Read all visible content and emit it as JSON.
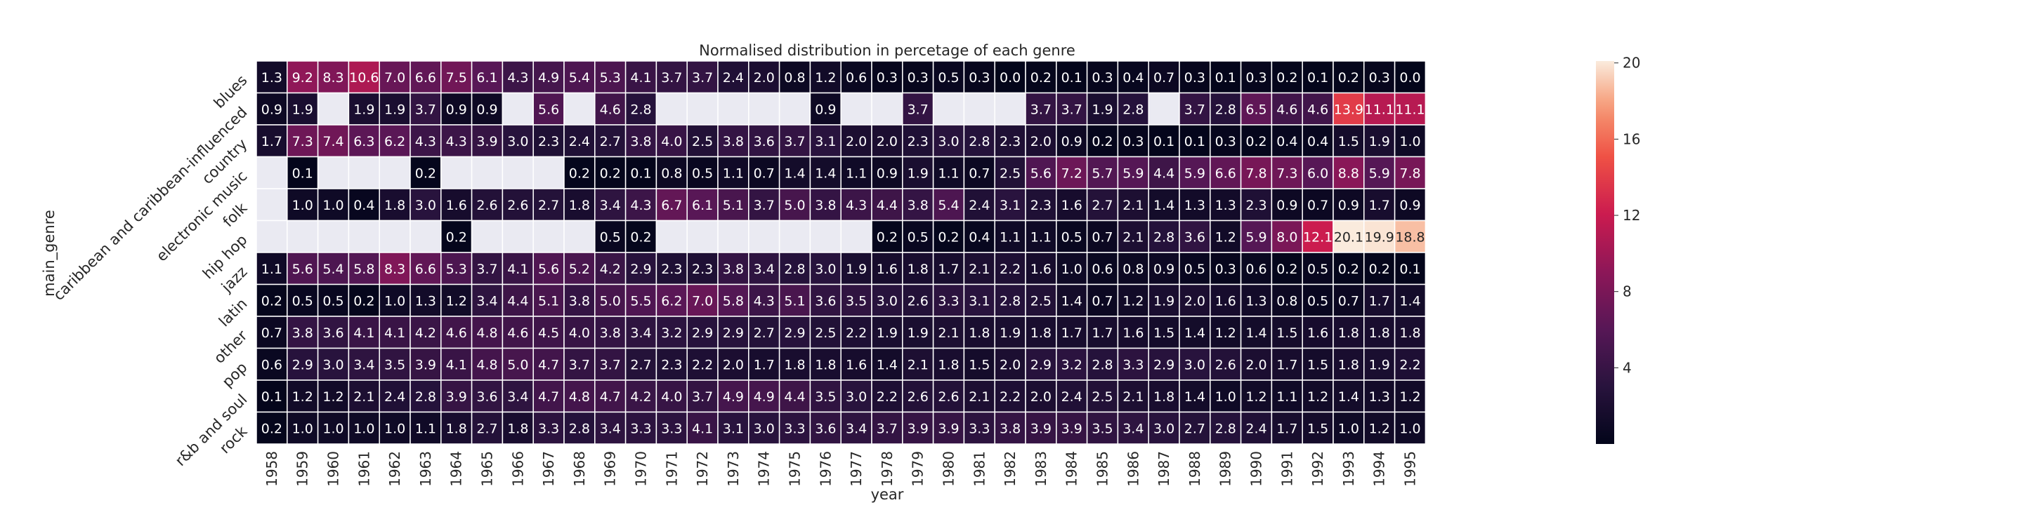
{
  "chart_data": {
    "type": "heatmap",
    "title": "Normalised distribution in percetage of each genre",
    "xlabel": "year",
    "ylabel": "main_genre",
    "x": [
      "1958",
      "1959",
      "1960",
      "1961",
      "1962",
      "1963",
      "1964",
      "1965",
      "1966",
      "1967",
      "1968",
      "1969",
      "1970",
      "1971",
      "1972",
      "1973",
      "1974",
      "1975",
      "1976",
      "1977",
      "1978",
      "1979",
      "1980",
      "1981",
      "1982",
      "1983",
      "1984",
      "1985",
      "1986",
      "1987",
      "1988",
      "1989",
      "1990",
      "1991",
      "1992",
      "1993",
      "1994",
      "1995"
    ],
    "y": [
      "blues",
      "caribbean and caribbean-influenced",
      "country",
      "electronic music",
      "folk",
      "hip hop",
      "jazz",
      "latin",
      "other",
      "pop",
      "r&b and soul",
      "rock"
    ],
    "values": [
      [
        1.3,
        9.2,
        8.3,
        10.6,
        7.0,
        6.6,
        7.5,
        6.1,
        4.3,
        4.9,
        5.4,
        5.3,
        4.1,
        3.7,
        3.7,
        2.4,
        2.0,
        0.8,
        1.2,
        0.6,
        0.3,
        0.3,
        0.5,
        0.3,
        0.0,
        0.2,
        0.1,
        0.3,
        0.4,
        0.7,
        0.3,
        0.1,
        0.3,
        0.2,
        0.1,
        0.2,
        0.3,
        0.0
      ],
      [
        0.9,
        1.9,
        null,
        1.9,
        1.9,
        3.7,
        0.9,
        0.9,
        null,
        5.6,
        null,
        4.6,
        2.8,
        null,
        null,
        null,
        null,
        null,
        0.9,
        null,
        null,
        3.7,
        null,
        null,
        null,
        3.7,
        3.7,
        1.9,
        2.8,
        null,
        3.7,
        2.8,
        6.5,
        4.6,
        4.6,
        13.9,
        11.1,
        11.1
      ],
      [
        1.7,
        7.3,
        7.4,
        6.3,
        6.2,
        4.3,
        4.3,
        3.9,
        3.0,
        2.3,
        2.4,
        2.7,
        3.8,
        4.0,
        2.5,
        3.8,
        3.6,
        3.7,
        3.1,
        2.0,
        2.0,
        2.3,
        3.0,
        2.8,
        2.3,
        2.0,
        0.9,
        0.2,
        0.3,
        0.1,
        0.1,
        0.3,
        0.2,
        0.4,
        0.4,
        1.5,
        1.9,
        1.0
      ],
      [
        null,
        0.1,
        null,
        null,
        null,
        0.2,
        null,
        null,
        null,
        null,
        0.2,
        0.2,
        0.1,
        0.8,
        0.5,
        1.1,
        0.7,
        1.4,
        1.4,
        1.1,
        0.9,
        1.9,
        1.1,
        0.7,
        2.5,
        5.6,
        7.2,
        5.7,
        5.9,
        4.4,
        5.9,
        6.6,
        7.8,
        7.3,
        6.0,
        8.8,
        5.9,
        7.8
      ],
      [
        null,
        1.0,
        1.0,
        0.4,
        1.8,
        3.0,
        1.6,
        2.6,
        2.6,
        2.7,
        1.8,
        3.4,
        4.3,
        6.7,
        6.1,
        5.1,
        3.7,
        5.0,
        3.8,
        4.3,
        4.4,
        3.8,
        5.4,
        2.4,
        3.1,
        2.3,
        1.6,
        2.7,
        2.1,
        1.4,
        1.3,
        1.3,
        2.3,
        0.9,
        0.7,
        0.9,
        1.7,
        0.9
      ],
      [
        null,
        null,
        null,
        null,
        null,
        null,
        0.2,
        null,
        null,
        null,
        null,
        0.5,
        0.2,
        null,
        null,
        null,
        null,
        null,
        null,
        null,
        0.2,
        0.5,
        0.2,
        0.4,
        1.1,
        1.1,
        0.5,
        0.7,
        2.1,
        2.8,
        3.6,
        1.2,
        5.9,
        8.0,
        12.1,
        20.1,
        19.9,
        18.8
      ],
      [
        1.1,
        5.6,
        5.4,
        5.8,
        8.3,
        6.6,
        5.3,
        3.7,
        4.1,
        5.6,
        5.2,
        4.2,
        2.9,
        2.3,
        2.3,
        3.8,
        3.4,
        2.8,
        3.0,
        1.9,
        1.6,
        1.8,
        1.7,
        2.1,
        2.2,
        1.6,
        1.0,
        0.6,
        0.8,
        0.9,
        0.5,
        0.3,
        0.6,
        0.2,
        0.5,
        0.2,
        0.2,
        0.1
      ],
      [
        0.2,
        0.5,
        0.5,
        0.2,
        1.0,
        1.3,
        1.2,
        3.4,
        4.4,
        5.1,
        3.8,
        5.0,
        5.5,
        6.2,
        7.0,
        5.8,
        4.3,
        5.1,
        3.6,
        3.5,
        3.0,
        2.6,
        3.3,
        3.1,
        2.8,
        2.5,
        1.4,
        0.7,
        1.2,
        1.9,
        2.0,
        1.6,
        1.3,
        0.8,
        0.5,
        0.7,
        1.7,
        1.4
      ],
      [
        0.7,
        3.8,
        3.6,
        4.1,
        4.1,
        4.2,
        4.6,
        4.8,
        4.6,
        4.5,
        4.0,
        3.8,
        3.4,
        3.2,
        2.9,
        2.9,
        2.7,
        2.9,
        2.5,
        2.2,
        1.9,
        1.9,
        2.1,
        1.8,
        1.9,
        1.8,
        1.7,
        1.7,
        1.6,
        1.5,
        1.4,
        1.2,
        1.4,
        1.5,
        1.6,
        1.8,
        1.8,
        1.8
      ],
      [
        0.6,
        2.9,
        3.0,
        3.4,
        3.5,
        3.9,
        4.1,
        4.8,
        5.0,
        4.7,
        3.7,
        3.7,
        2.7,
        2.3,
        2.2,
        2.0,
        1.7,
        1.8,
        1.8,
        1.6,
        1.4,
        2.1,
        1.8,
        1.5,
        2.0,
        2.9,
        3.2,
        2.8,
        3.3,
        2.9,
        3.0,
        2.6,
        2.0,
        1.7,
        1.5,
        1.8,
        1.9,
        2.2
      ],
      [
        0.1,
        1.2,
        1.2,
        2.1,
        2.4,
        2.8,
        3.9,
        3.6,
        3.4,
        4.7,
        4.8,
        4.7,
        4.2,
        4.0,
        3.7,
        4.9,
        4.9,
        4.4,
        3.5,
        3.0,
        2.2,
        2.6,
        2.6,
        2.1,
        2.2,
        2.0,
        2.4,
        2.5,
        2.1,
        1.8,
        1.4,
        1.0,
        1.2,
        1.1,
        1.2,
        1.4,
        1.3,
        1.2
      ],
      [
        0.2,
        1.0,
        1.0,
        1.0,
        1.0,
        1.1,
        1.8,
        2.7,
        1.8,
        3.3,
        2.8,
        3.4,
        3.3,
        3.3,
        4.1,
        3.1,
        3.0,
        3.3,
        3.6,
        3.4,
        3.7,
        3.9,
        3.9,
        3.3,
        3.8,
        3.9,
        3.9,
        3.5,
        3.4,
        3.0,
        2.7,
        2.8,
        2.4,
        1.7,
        1.5,
        1.0,
        1.2,
        1.0
      ]
    ],
    "colorbar": {
      "range": [
        0,
        20.1
      ],
      "ticks": [
        4,
        8,
        12,
        16,
        20
      ],
      "colormap": "rocket"
    },
    "missing_color": "#eaeaf2",
    "annot": true,
    "grid": false,
    "legend": "colorbar-right"
  }
}
